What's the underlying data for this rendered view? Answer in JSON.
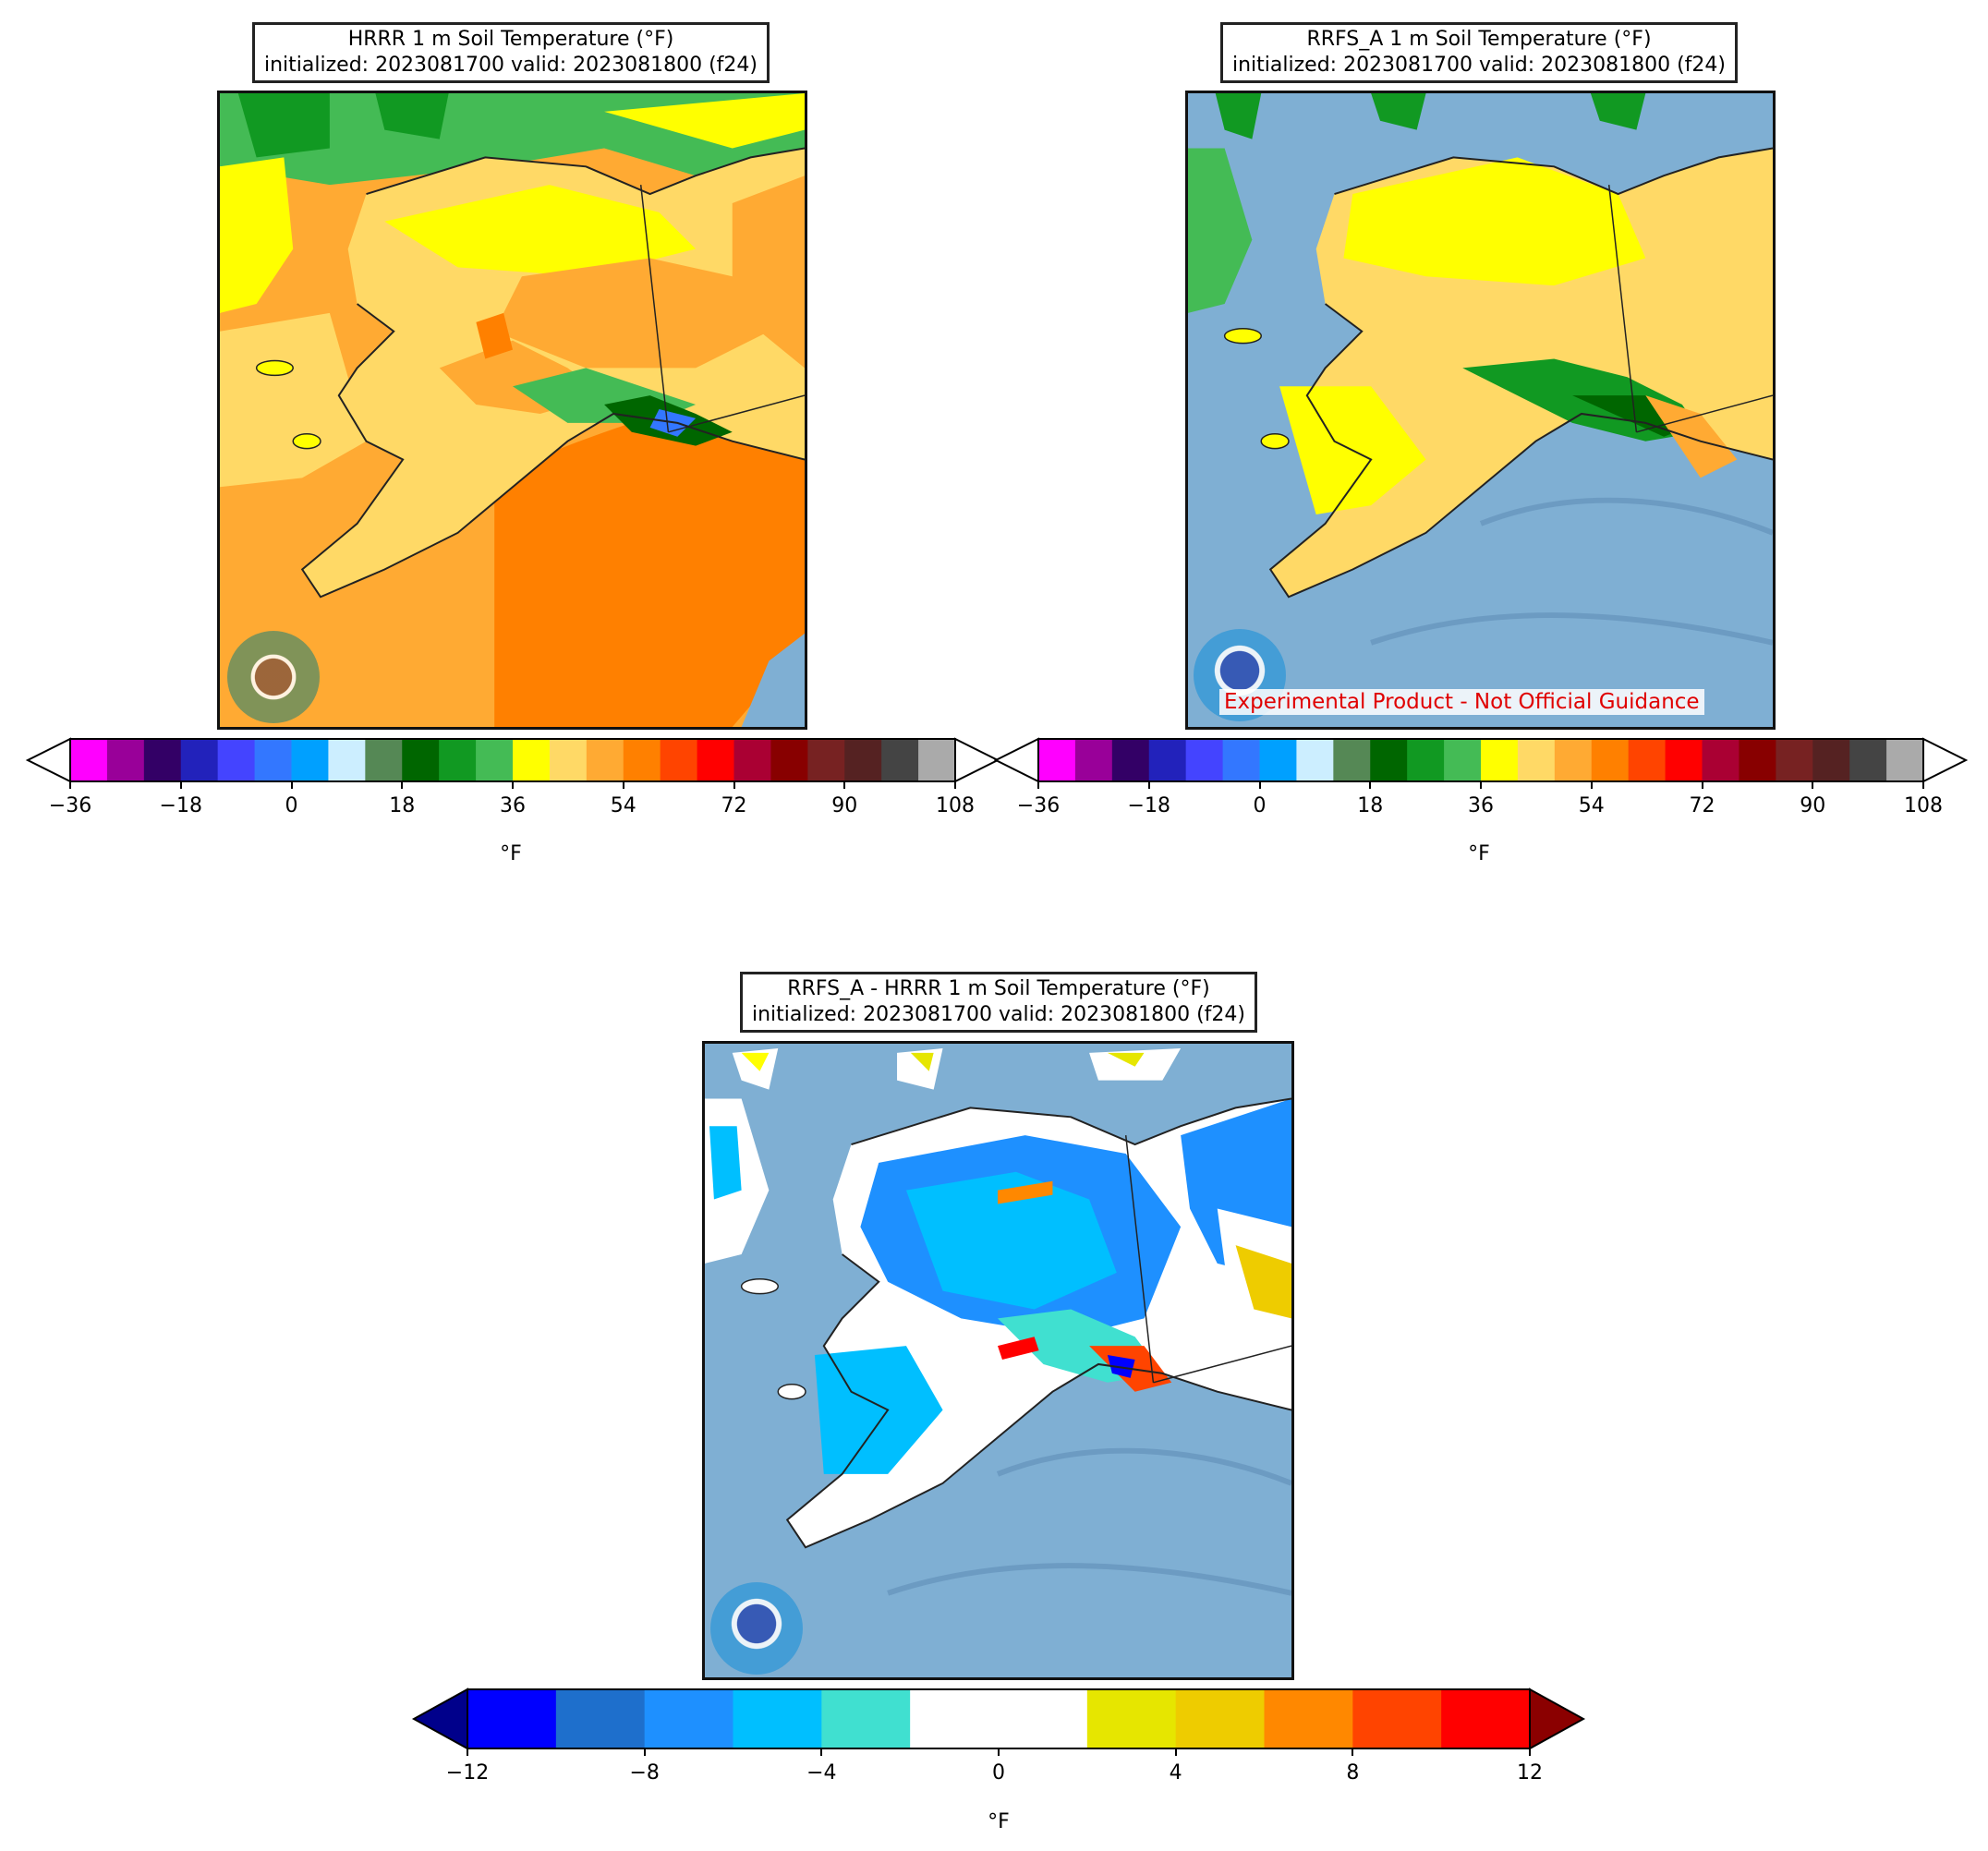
{
  "panels": {
    "hrrr": {
      "title_line1": "HRRR 1 m Soil Temperature (°F)",
      "title_line2": "initialized: 2023081700 valid: 2023081800 (f24)",
      "logo_name": "noaa-logo-icon"
    },
    "rrfs": {
      "title_line1": "RRFS_A 1 m Soil Temperature (°F)",
      "title_line2": "initialized: 2023081700 valid: 2023081800 (f24)",
      "watermark": "Experimental Product - Not Official Guidance",
      "logo_name": "noaa-logo-icon"
    },
    "diff": {
      "title_line1": "RRFS_A - HRRR 1 m Soil Temperature (°F)",
      "title_line2": "initialized: 2023081700 valid: 2023081800 (f24)",
      "logo_name": "noaa-logo-icon"
    }
  },
  "temp_colorbar": {
    "unit": "°F",
    "ticks": [
      "−36",
      "−18",
      "0",
      "18",
      "36",
      "54",
      "72",
      "90",
      "108"
    ],
    "colors": [
      "#ff00ff",
      "#990099",
      "#330066",
      "#2222bb",
      "#4444ff",
      "#3377ff",
      "#00a0ff",
      "#cceeff",
      "#558855",
      "#006600",
      "#119922",
      "#44bb55",
      "#ffff00",
      "#ffd966",
      "#ffaa33",
      "#ff8000",
      "#ff4400",
      "#ff0000",
      "#aa0033",
      "#880000",
      "#772222",
      "#552222",
      "#444444",
      "#aaaaaa"
    ],
    "under_color": "#ffffff",
    "over_color": "#ffffff"
  },
  "diff_colorbar": {
    "unit": "°F",
    "ticks": [
      "−12",
      "−8",
      "−4",
      "0",
      "4",
      "8",
      "12"
    ],
    "colors": [
      "#0000ff",
      "#1e6fcc",
      "#1e90ff",
      "#00bfff",
      "#40e0d0",
      "#ffffff",
      "#ffffff",
      "#e6e600",
      "#eecc00",
      "#ff8800",
      "#ff4400",
      "#ff0000"
    ],
    "under_color": "#00008b",
    "over_color": "#8b0000"
  },
  "map_colors": {
    "ocean": "#7fafd3",
    "hrrr_ocean_a": "#ffaa33",
    "hrrr_ocean_b": "#ff8000",
    "land_yellow": "#ffff00",
    "land_lightorange": "#ffd966",
    "land_green": "#119922",
    "land_darkgreen": "#006600",
    "land_lightgreen": "#44bb55",
    "diff_land": "#1e90ff",
    "diff_land2": "#00bfff"
  }
}
